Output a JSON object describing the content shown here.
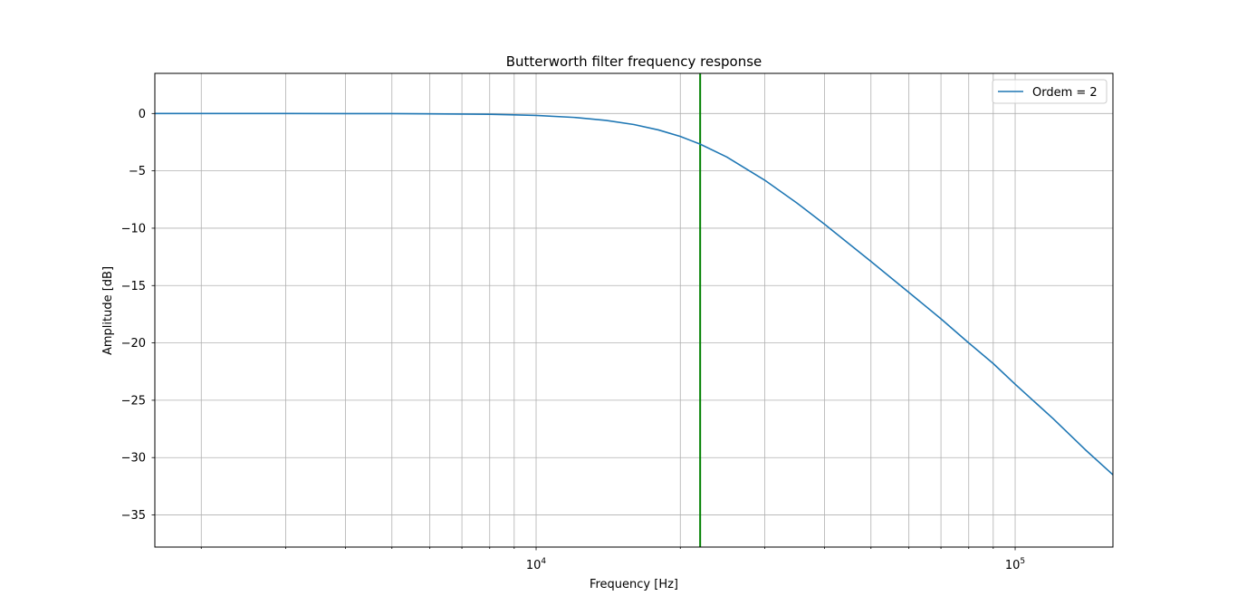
{
  "chart_data": {
    "type": "line",
    "title": "Butterworth filter frequency response",
    "xlabel": "Frequency [Hz]",
    "ylabel": "Amplitude [dB]",
    "xscale": "log",
    "xlim": [
      1600,
      160000
    ],
    "ylim": [
      -37.8,
      3.5
    ],
    "grid": "both (major and minor)",
    "legend_position": "upper right",
    "x_major_ticks": [
      {
        "value": 10000,
        "base": "10",
        "exp": "4"
      },
      {
        "value": 100000,
        "base": "10",
        "exp": "5"
      }
    ],
    "y_ticks": [
      {
        "value": 0,
        "label": "0"
      },
      {
        "value": -5,
        "label": "−5"
      },
      {
        "value": -10,
        "label": "−10"
      },
      {
        "value": -15,
        "label": "−15"
      },
      {
        "value": -20,
        "label": "−20"
      },
      {
        "value": -25,
        "label": "−25"
      },
      {
        "value": -30,
        "label": "−30"
      },
      {
        "value": -35,
        "label": "−35"
      }
    ],
    "series": [
      {
        "name": "Ordem = 2",
        "color": "#1f77b4",
        "x": [
          1600,
          2000,
          3000,
          4000,
          5000,
          6000,
          7000,
          8000,
          9000,
          10000,
          12000,
          14000,
          16000,
          18000,
          20000,
          22000,
          25000,
          30000,
          35000,
          40000,
          50000,
          60000,
          70000,
          80000,
          90000,
          100000,
          120000,
          140000,
          160000
        ],
        "y": [
          0.0,
          0.0,
          0.0,
          -0.01,
          -0.01,
          -0.03,
          -0.05,
          -0.07,
          -0.12,
          -0.17,
          -0.34,
          -0.6,
          -0.96,
          -1.43,
          -2.0,
          -2.67,
          -3.79,
          -5.81,
          -7.79,
          -9.65,
          -12.9,
          -15.6,
          -17.9,
          -20.0,
          -21.8,
          -23.6,
          -26.6,
          -29.3,
          -31.5
        ]
      }
    ],
    "vlines": [
      {
        "x": 22000,
        "color": "#008000"
      }
    ]
  }
}
